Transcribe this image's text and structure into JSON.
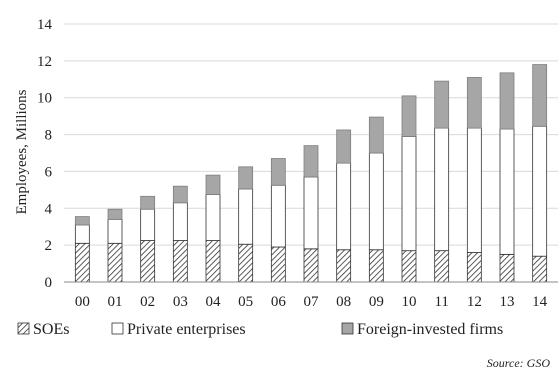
{
  "chart_data": {
    "type": "bar",
    "stacked": true,
    "categories": [
      "00",
      "01",
      "02",
      "03",
      "04",
      "05",
      "06",
      "07",
      "08",
      "09",
      "10",
      "11",
      "12",
      "13",
      "14"
    ],
    "series": [
      {
        "name": "SOEs",
        "values": [
          2.1,
          2.1,
          2.25,
          2.25,
          2.25,
          2.05,
          1.9,
          1.8,
          1.75,
          1.75,
          1.7,
          1.7,
          1.6,
          1.5,
          1.4
        ],
        "color": "#ffffff",
        "pattern": "hatch"
      },
      {
        "name": "Private enterprises",
        "values": [
          1.0,
          1.3,
          1.7,
          2.05,
          2.5,
          3.0,
          3.35,
          3.9,
          4.7,
          5.25,
          6.2,
          6.65,
          6.75,
          6.8,
          7.05
        ],
        "color": "#ffffff",
        "pattern": "none"
      },
      {
        "name": "Foreign-invested firms",
        "values": [
          0.45,
          0.55,
          0.7,
          0.9,
          1.05,
          1.2,
          1.45,
          1.7,
          1.8,
          1.95,
          2.2,
          2.55,
          2.75,
          3.05,
          3.35
        ],
        "color": "#a6a6a6",
        "pattern": "none"
      }
    ],
    "xlabel": "",
    "ylabel": "Employees, Millions",
    "ylim": [
      0,
      14
    ],
    "yticks": [
      0,
      2,
      4,
      6,
      8,
      10,
      12,
      14
    ],
    "grid": true,
    "legend_position": "bottom"
  },
  "source": "Source: GSO"
}
